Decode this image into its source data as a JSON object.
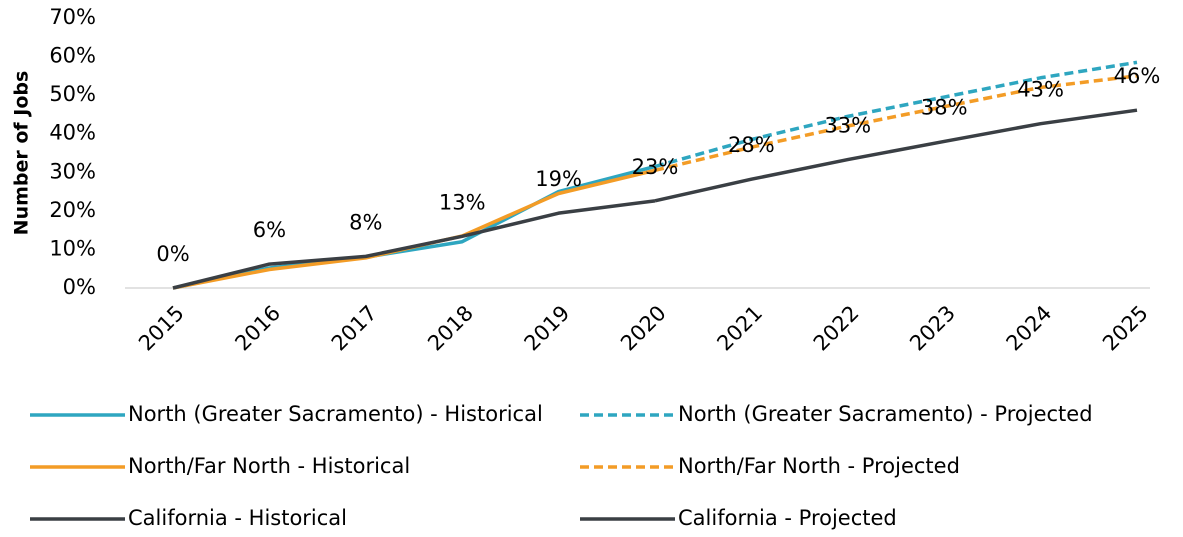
{
  "chart_data": {
    "type": "line",
    "y_label": "Number of Jobs",
    "categories": [
      "2015",
      "2016",
      "2017",
      "2018",
      "2019",
      "2020",
      "2021",
      "2022",
      "2023",
      "2024",
      "2025"
    ],
    "ylim": [
      0,
      70
    ],
    "yticks": [
      {
        "value": 0,
        "label": "0%"
      },
      {
        "value": 10,
        "label": "10%"
      },
      {
        "value": 20,
        "label": "20%"
      },
      {
        "value": 30,
        "label": "30%"
      },
      {
        "value": 40,
        "label": "40%"
      },
      {
        "value": 50,
        "label": "50%"
      },
      {
        "value": 60,
        "label": "60%"
      },
      {
        "value": 70,
        "label": "70%"
      }
    ],
    "series": [
      {
        "name": "North (Greater Sacramento) - Historical",
        "color": "#2ea6c0",
        "dashed": false,
        "values": [
          0,
          5.2,
          8,
          12,
          25,
          31.5,
          null,
          null,
          null,
          null,
          null
        ]
      },
      {
        "name": "North (Greater Sacramento) - Projected",
        "color": "#2ea6c0",
        "dashed": true,
        "values": [
          null,
          null,
          null,
          null,
          null,
          31.5,
          38.5,
          44.5,
          49.5,
          54.5,
          58.5
        ]
      },
      {
        "name": "North/Far North - Historical",
        "color": "#f39c26",
        "dashed": false,
        "values": [
          0,
          4.8,
          7.8,
          13.5,
          24.5,
          30.5,
          null,
          null,
          null,
          null,
          null
        ]
      },
      {
        "name": "North/Far North - Projected",
        "color": "#f39c26",
        "dashed": true,
        "values": [
          null,
          null,
          null,
          null,
          null,
          30.5,
          36.5,
          42,
          47,
          52,
          55
        ]
      },
      {
        "name": "California - Historical",
        "color": "#3a3f44",
        "dashed": false,
        "values": [
          0,
          6.2,
          8.2,
          13.4,
          19.4,
          22.6,
          null,
          null,
          null,
          null,
          null
        ],
        "value_labels": [
          "0%",
          "6%",
          "8%",
          "13%",
          "19%",
          "23%",
          null,
          null,
          null,
          null,
          null
        ]
      },
      {
        "name": "California - Projected",
        "color": "#3a3f44",
        "dashed": false,
        "values": [
          null,
          null,
          null,
          null,
          null,
          22.6,
          28.2,
          33.3,
          38,
          42.6,
          46.1
        ],
        "value_labels": [
          null,
          null,
          null,
          null,
          null,
          null,
          "28%",
          "33%",
          "38%",
          "43%",
          "46%"
        ]
      }
    ]
  }
}
